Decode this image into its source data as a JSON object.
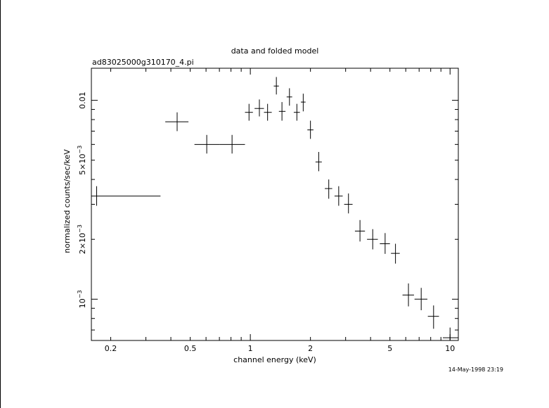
{
  "chart_data": {
    "type": "scatter",
    "title": "data and folded model",
    "subtitle": "ad83025000g310170_4.pi",
    "xlabel": "channel energy (keV)",
    "ylabel": "normalized counts/sec/keV",
    "timestamp": "14-May-1998 23:19",
    "x_scale": "log",
    "y_scale": "log",
    "xlim": [
      0.16,
      11
    ],
    "ylim": [
      0.00062,
      0.0145
    ],
    "grid": false,
    "x_ticks": [
      {
        "value": 0.2,
        "label": "0.2"
      },
      {
        "value": 0.5,
        "label": "0.5"
      },
      {
        "value": 1,
        "label": "1"
      },
      {
        "value": 2,
        "label": "2"
      },
      {
        "value": 5,
        "label": "5"
      },
      {
        "value": 10,
        "label": "10"
      }
    ],
    "y_ticks": [
      {
        "value": 0.001,
        "mantissa": "",
        "power": "10",
        "exp": "−3"
      },
      {
        "value": 0.002,
        "mantissa": "2×",
        "power": "10",
        "exp": "−3"
      },
      {
        "value": 0.005,
        "mantissa": "5×",
        "power": "10",
        "exp": "−3"
      },
      {
        "value": 0.01,
        "mantissa": "",
        "power": "0.01",
        "exp": ""
      }
    ],
    "points": [
      {
        "x": 0.17,
        "xlo": 0.16,
        "xhi": 0.355,
        "y": 0.0033,
        "ylo": 0.00295,
        "yhi": 0.0037
      },
      {
        "x": 0.43,
        "xlo": 0.375,
        "xhi": 0.49,
        "y": 0.0078,
        "ylo": 0.007,
        "yhi": 0.0087
      },
      {
        "x": 0.605,
        "xlo": 0.525,
        "xhi": 0.7,
        "y": 0.006,
        "ylo": 0.0054,
        "yhi": 0.0067
      },
      {
        "x": 0.81,
        "xlo": 0.7,
        "xhi": 0.94,
        "y": 0.006,
        "ylo": 0.0054,
        "yhi": 0.0067
      },
      {
        "x": 0.985,
        "xlo": 0.94,
        "xhi": 1.03,
        "y": 0.0087,
        "ylo": 0.0079,
        "yhi": 0.0096
      },
      {
        "x": 1.11,
        "xlo": 1.05,
        "xhi": 1.17,
        "y": 0.0091,
        "ylo": 0.0083,
        "yhi": 0.0101
      },
      {
        "x": 1.22,
        "xlo": 1.17,
        "xhi": 1.28,
        "y": 0.0087,
        "ylo": 0.0079,
        "yhi": 0.0096
      },
      {
        "x": 1.35,
        "xlo": 1.31,
        "xhi": 1.39,
        "y": 0.0118,
        "ylo": 0.0107,
        "yhi": 0.0131
      },
      {
        "x": 1.44,
        "xlo": 1.39,
        "xhi": 1.5,
        "y": 0.0088,
        "ylo": 0.0079,
        "yhi": 0.0098
      },
      {
        "x": 1.57,
        "xlo": 1.52,
        "xhi": 1.62,
        "y": 0.0104,
        "ylo": 0.0094,
        "yhi": 0.0115
      },
      {
        "x": 1.71,
        "xlo": 1.65,
        "xhi": 1.77,
        "y": 0.0087,
        "ylo": 0.0079,
        "yhi": 0.0096
      },
      {
        "x": 1.84,
        "xlo": 1.79,
        "xhi": 1.89,
        "y": 0.0098,
        "ylo": 0.0088,
        "yhi": 0.0108
      },
      {
        "x": 2.0,
        "xlo": 1.93,
        "xhi": 2.07,
        "y": 0.0071,
        "ylo": 0.0064,
        "yhi": 0.0079
      },
      {
        "x": 2.2,
        "xlo": 2.12,
        "xhi": 2.28,
        "y": 0.0049,
        "ylo": 0.0044,
        "yhi": 0.0055
      },
      {
        "x": 2.47,
        "xlo": 2.36,
        "xhi": 2.57,
        "y": 0.0036,
        "ylo": 0.0032,
        "yhi": 0.004
      },
      {
        "x": 2.77,
        "xlo": 2.64,
        "xhi": 2.9,
        "y": 0.0033,
        "ylo": 0.00295,
        "yhi": 0.0037
      },
      {
        "x": 3.1,
        "xlo": 2.95,
        "xhi": 3.25,
        "y": 0.003,
        "ylo": 0.0027,
        "yhi": 0.0034
      },
      {
        "x": 3.54,
        "xlo": 3.34,
        "xhi": 3.75,
        "y": 0.0022,
        "ylo": 0.00195,
        "yhi": 0.0025
      },
      {
        "x": 4.1,
        "xlo": 3.84,
        "xhi": 4.35,
        "y": 0.002,
        "ylo": 0.00178,
        "yhi": 0.00225
      },
      {
        "x": 4.73,
        "xlo": 4.45,
        "xhi": 5.0,
        "y": 0.0019,
        "ylo": 0.00169,
        "yhi": 0.00215
      },
      {
        "x": 5.33,
        "xlo": 5.06,
        "xhi": 5.6,
        "y": 0.0017,
        "ylo": 0.00151,
        "yhi": 0.0019
      },
      {
        "x": 6.19,
        "xlo": 5.78,
        "xhi": 6.6,
        "y": 0.00105,
        "ylo": 0.00092,
        "yhi": 0.0012
      },
      {
        "x": 7.17,
        "xlo": 6.64,
        "xhi": 7.7,
        "y": 0.001,
        "ylo": 0.00088,
        "yhi": 0.00114
      },
      {
        "x": 8.27,
        "xlo": 7.74,
        "xhi": 8.8,
        "y": 0.00082,
        "ylo": 0.00071,
        "yhi": 0.00093
      },
      {
        "x": 10.0,
        "xlo": 9.2,
        "xhi": 11.0,
        "y": 0.00064,
        "ylo": 0.00062,
        "yhi": 0.00072
      }
    ]
  }
}
